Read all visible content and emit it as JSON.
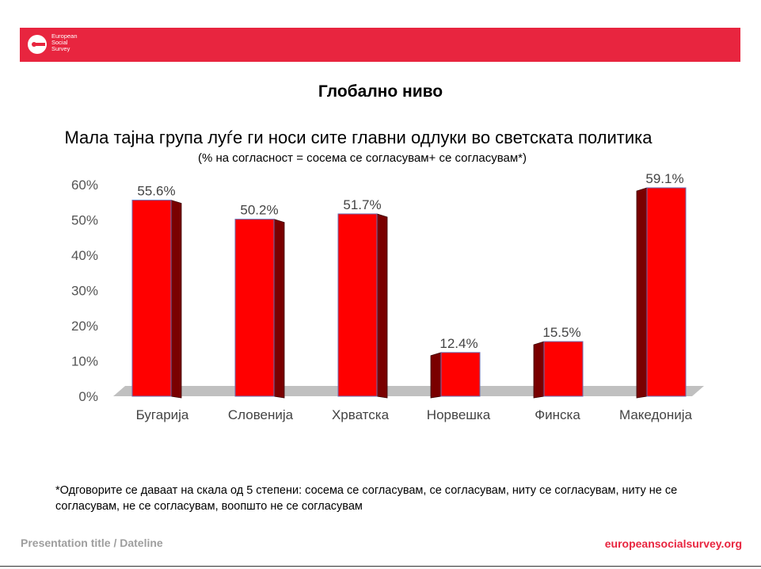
{
  "logo": {
    "lines": [
      "European",
      "Social",
      "Survey"
    ]
  },
  "heading": "Глобално ниво",
  "colors": {
    "brand": "#e8253f",
    "bar_front": "#ff0000",
    "bar_side": "#7a0000",
    "bar_top": "#ff2a2a",
    "floor": "#c0c0c0"
  },
  "chart_data": {
    "type": "bar",
    "title": "Мала тајна група луѓе ги носи сите главни одлуки во светската политика",
    "subtitle": "(% на согласност = сосема се согласувам+ се согласувам*)",
    "categories": [
      "Бугарија",
      "Словенија",
      "Хрватска",
      "Норвешка",
      "Финска",
      "Македонија"
    ],
    "values": [
      55.6,
      50.2,
      51.7,
      12.4,
      15.5,
      59.1
    ],
    "value_labels": [
      "55.6%",
      "50.2%",
      "51.7%",
      "12.4%",
      "15.5%",
      "59.1%"
    ],
    "yticks": [
      "0%",
      "10%",
      "20%",
      "30%",
      "40%",
      "50%",
      "60%"
    ],
    "ylim": [
      0,
      60
    ],
    "grid": false,
    "legend": "none",
    "style": "3d-columns"
  },
  "footnote": "*Одговорите се даваат на скала од 5 степени: сосема се согласувам, се согласувам, ниту се согласувам, ниту не се согласувам, не се согласувам, воопшто не се согласувам",
  "footer": {
    "left": "Presentation title / Dateline",
    "right": "europeansocialsurvey.org"
  }
}
